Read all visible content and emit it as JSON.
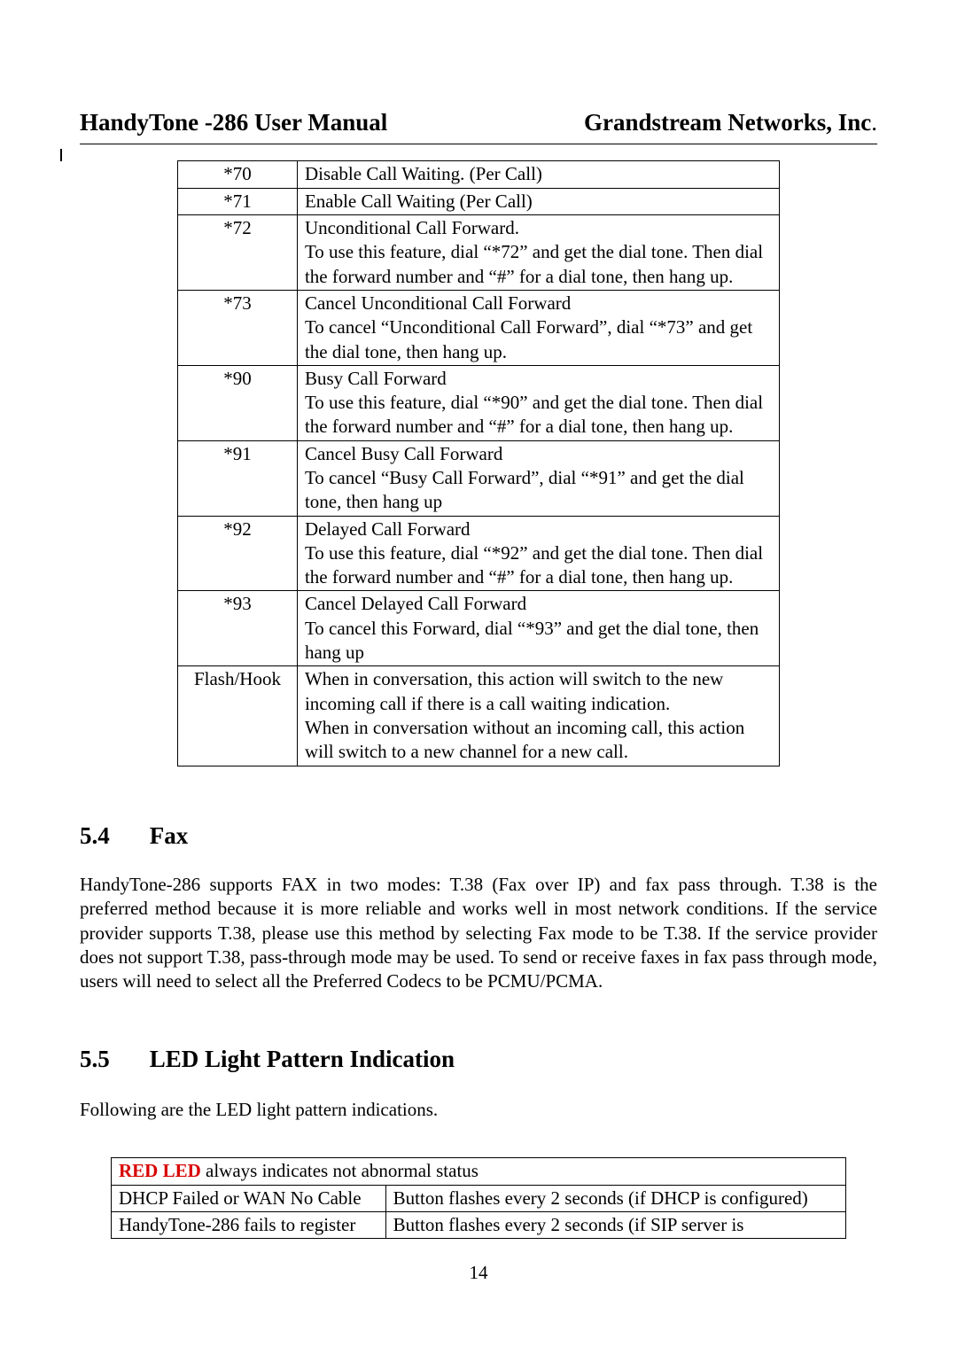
{
  "header": {
    "left": "HandyTone -286 User Manual",
    "right_main": "Grandstream Networks, Inc",
    "right_dot": "."
  },
  "codes_table": {
    "rows": [
      {
        "code": "*70",
        "desc": "Disable Call Waiting.  (Per Call)"
      },
      {
        "code": "*71",
        "desc": "Enable Call Waiting (Per Call)"
      },
      {
        "code": "*72",
        "desc": "Unconditional Call Forward.\nTo use this feature, dial “*72” and get the dial tone. Then dial the forward number and “#” for a dial tone, then hang up."
      },
      {
        "code": "*73",
        "desc": "Cancel Unconditional Call Forward\nTo cancel “Unconditional Call Forward”, dial “*73” and get the dial tone, then hang up."
      },
      {
        "code": "*90",
        "desc": "Busy Call Forward\nTo use this feature, dial “*90” and get the dial tone. Then dial the forward number and “#” for a dial tone, then hang up."
      },
      {
        "code": "*91",
        "desc": "Cancel Busy Call Forward\nTo cancel “Busy Call Forward”, dial “*91” and get the dial tone, then hang up"
      },
      {
        "code": "*92",
        "desc": "Delayed Call Forward\nTo use this feature, dial “*92” and get the dial tone. Then dial the forward number and “#” for a dial tone, then hang up."
      },
      {
        "code": "*93",
        "desc": "Cancel Delayed Call Forward\nTo cancel this Forward, dial “*93” and get the dial tone, then hang up"
      },
      {
        "code": "Flash/Hook",
        "desc": "When in conversation, this action will switch to the new incoming call if there is a call waiting indication.\nWhen in conversation without an incoming call, this action will switch to a new channel for a new call."
      }
    ]
  },
  "section54": {
    "num": "5.4",
    "title": "Fax",
    "body": "HandyTone-286 supports FAX in two modes: T.38 (Fax over IP) and fax pass through. T.38 is the preferred method because it is more reliable and works well in most network conditions. If the service provider supports T.38, please use this method by selecting Fax mode to be T.38. If the service provider does not support T.38, pass-through mode may be used. To send or receive faxes in fax pass through mode, users will need to select all the Preferred Codecs to be PCMU/PCMA."
  },
  "section55": {
    "num": "5.5",
    "title": "LED Light Pattern Indication",
    "intro": "Following are the LED light pattern indications."
  },
  "led_table": {
    "header_red": "RED LED",
    "header_rest": " always indicates not abnormal status",
    "rows": [
      {
        "cond": "DHCP Failed or WAN No Cable",
        "act": "Button flashes every 2 seconds (if DHCP is configured)"
      },
      {
        "cond": "HandyTone-286 fails to register",
        "act": "Button flashes every 2 seconds (if SIP server is"
      }
    ]
  },
  "page_number": "14",
  "colors": {
    "text": "#000000",
    "red": "#d80000",
    "background": "#ffffff"
  }
}
